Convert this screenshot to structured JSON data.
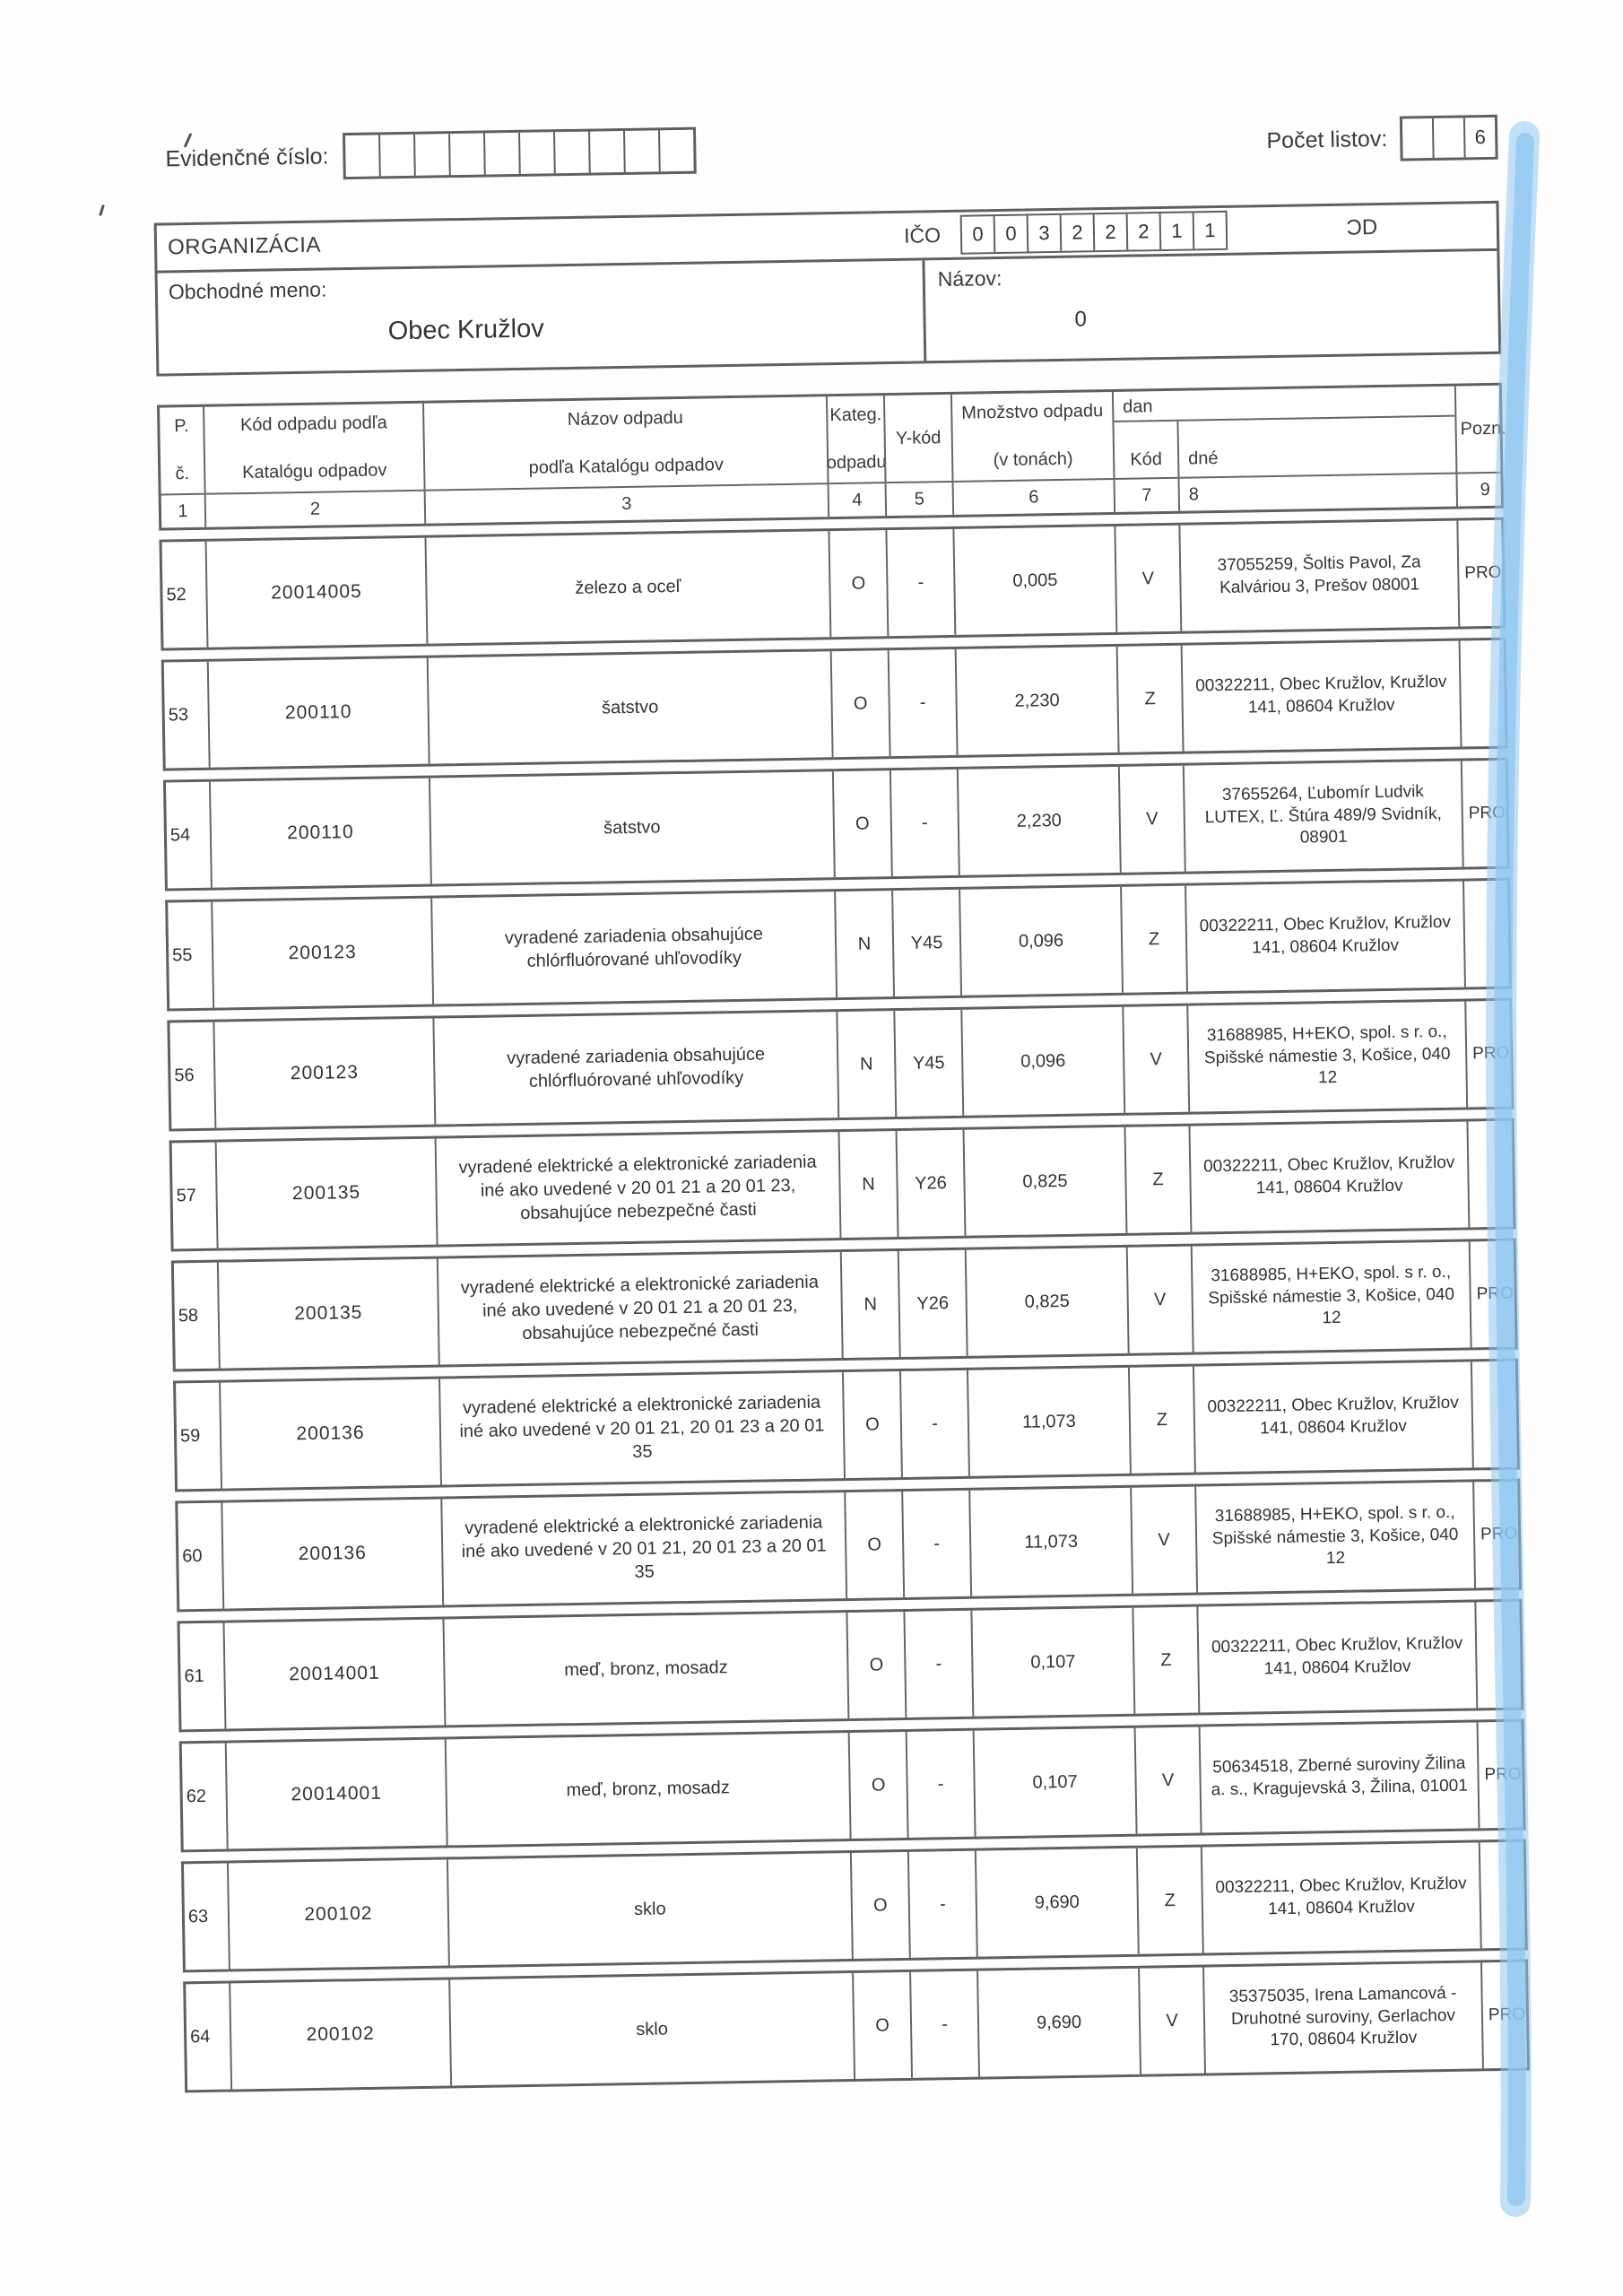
{
  "page": {
    "evidencne_cislo_label": "Evidenčné číslo:",
    "pocet_listov_label": "Počet listov:",
    "pocet_listov_value": "6",
    "organizacia_label": "ORGANIZÁCIA",
    "ico_label": "IČO",
    "ico_digits": [
      "0",
      "0",
      "3",
      "2",
      "2",
      "2",
      "1",
      "1"
    ],
    "code_right": "ƆD",
    "obchodne_meno_label": "Obchodné meno:",
    "obchodne_meno_value": "Obec Kružlov",
    "nazov_label": "Názov:",
    "nazov_value": "0"
  },
  "table": {
    "header": {
      "col_pc_top": "P.",
      "col_pc_bottom": "č.",
      "col_kod_top": "Kód odpadu podľa",
      "col_kod_bottom": "Katalógu odpadov",
      "col_nazov_top": "Názov odpadu",
      "col_nazov_bottom": "podľa Katalógu odpadov",
      "col_kateg_top": "Kateg.",
      "col_kateg_bottom": "odpadu",
      "col_ykod": "Y-kód",
      "col_mnozstvo_top": "Množstvo odpadu",
      "col_mnozstvo_bottom": "(v tonách)",
      "col_dan_group": "dan",
      "col_dan_kod": "Kód",
      "col_dan_dne": "dné",
      "col_pozn": "Pozn.",
      "numbers": [
        "1",
        "2",
        "3",
        "4",
        "5",
        "6",
        "7",
        "8",
        "9"
      ]
    },
    "rows": [
      {
        "no": "52",
        "code": "20014005",
        "name": "železo a oceľ",
        "kateg": "O",
        "ykod": "-",
        "qty": "0,005",
        "kod": "V",
        "org": "37055259, Šoltis Pavol, Za Kalváriou 3, Prešov 08001",
        "pozn": "PRO"
      },
      {
        "no": "53",
        "code": "200110",
        "name": "šatstvo",
        "kateg": "O",
        "ykod": "-",
        "qty": "2,230",
        "kod": "Z",
        "org": "00322211, Obec Kružlov, Kružlov 141, 08604 Kružlov",
        "pozn": ""
      },
      {
        "no": "54",
        "code": "200110",
        "name": "šatstvo",
        "kateg": "O",
        "ykod": "-",
        "qty": "2,230",
        "kod": "V",
        "org": "37655264, Ľubomír Ludvik LUTEX, Ľ. Štúra 489/9 Svidník, 08901",
        "pozn": "PRO"
      },
      {
        "no": "55",
        "code": "200123",
        "name": "vyradené zariadenia obsahujúce chlórfluórované uhľovodíky",
        "kateg": "N",
        "ykod": "Y45",
        "qty": "0,096",
        "kod": "Z",
        "org": "00322211, Obec Kružlov, Kružlov 141, 08604 Kružlov",
        "pozn": ""
      },
      {
        "no": "56",
        "code": "200123",
        "name": "vyradené zariadenia obsahujúce chlórfluórované uhľovodíky",
        "kateg": "N",
        "ykod": "Y45",
        "qty": "0,096",
        "kod": "V",
        "org": "31688985, H+EKO, spol. s r. o., Spišské námestie 3, Košice, 040 12",
        "pozn": "PRO"
      },
      {
        "no": "57",
        "code": "200135",
        "name": "vyradené elektrické a elektronické zariadenia iné ako uvedené v 20 01 21 a 20 01 23, obsahujúce nebezpečné časti",
        "kateg": "N",
        "ykod": "Y26",
        "qty": "0,825",
        "kod": "Z",
        "org": "00322211, Obec Kružlov, Kružlov 141, 08604 Kružlov",
        "pozn": ""
      },
      {
        "no": "58",
        "code": "200135",
        "name": "vyradené elektrické a elektronické zariadenia iné ako uvedené v 20 01 21 a 20 01 23, obsahujúce nebezpečné časti",
        "kateg": "N",
        "ykod": "Y26",
        "qty": "0,825",
        "kod": "V",
        "org": "31688985, H+EKO, spol. s r. o., Spišské námestie 3, Košice, 040 12",
        "pozn": "PRO"
      },
      {
        "no": "59",
        "code": "200136",
        "name": "vyradené elektrické a elektronické zariadenia iné ako uvedené v 20 01 21, 20 01 23 a 20 01 35",
        "kateg": "O",
        "ykod": "-",
        "qty": "11,073",
        "kod": "Z",
        "org": "00322211, Obec Kružlov, Kružlov 141, 08604 Kružlov",
        "pozn": ""
      },
      {
        "no": "60",
        "code": "200136",
        "name": "vyradené elektrické a elektronické zariadenia iné ako uvedené v 20 01 21, 20 01 23 a 20 01 35",
        "kateg": "O",
        "ykod": "-",
        "qty": "11,073",
        "kod": "V",
        "org": "31688985, H+EKO, spol. s r. o., Spišské námestie 3, Košice, 040 12",
        "pozn": "PRO"
      },
      {
        "no": "61",
        "code": "20014001",
        "name": "meď, bronz, mosadz",
        "kateg": "O",
        "ykod": "-",
        "qty": "0,107",
        "kod": "Z",
        "org": "00322211, Obec Kružlov, Kružlov 141, 08604 Kružlov",
        "pozn": ""
      },
      {
        "no": "62",
        "code": "20014001",
        "name": "meď, bronz, mosadz",
        "kateg": "O",
        "ykod": "-",
        "qty": "0,107",
        "kod": "V",
        "org": "50634518, Zberné suroviny Žilina a. s., Kragujevská 3, Žilina, 01001",
        "pozn": "PRO"
      },
      {
        "no": "63",
        "code": "200102",
        "name": "sklo",
        "kateg": "O",
        "ykod": "-",
        "qty": "9,690",
        "kod": "Z",
        "org": "00322211, Obec Kružlov, Kružlov 141, 08604 Kružlov",
        "pozn": ""
      },
      {
        "no": "64",
        "code": "200102",
        "name": "sklo",
        "kateg": "O",
        "ykod": "-",
        "qty": "9,690",
        "kod": "V",
        "org": "35375035, Irena Lamancová - Druhotné suroviny, Gerlachov 170, 08604 Kružlov",
        "pozn": "PRO"
      }
    ]
  },
  "highlight_color": "#8ec6f0"
}
